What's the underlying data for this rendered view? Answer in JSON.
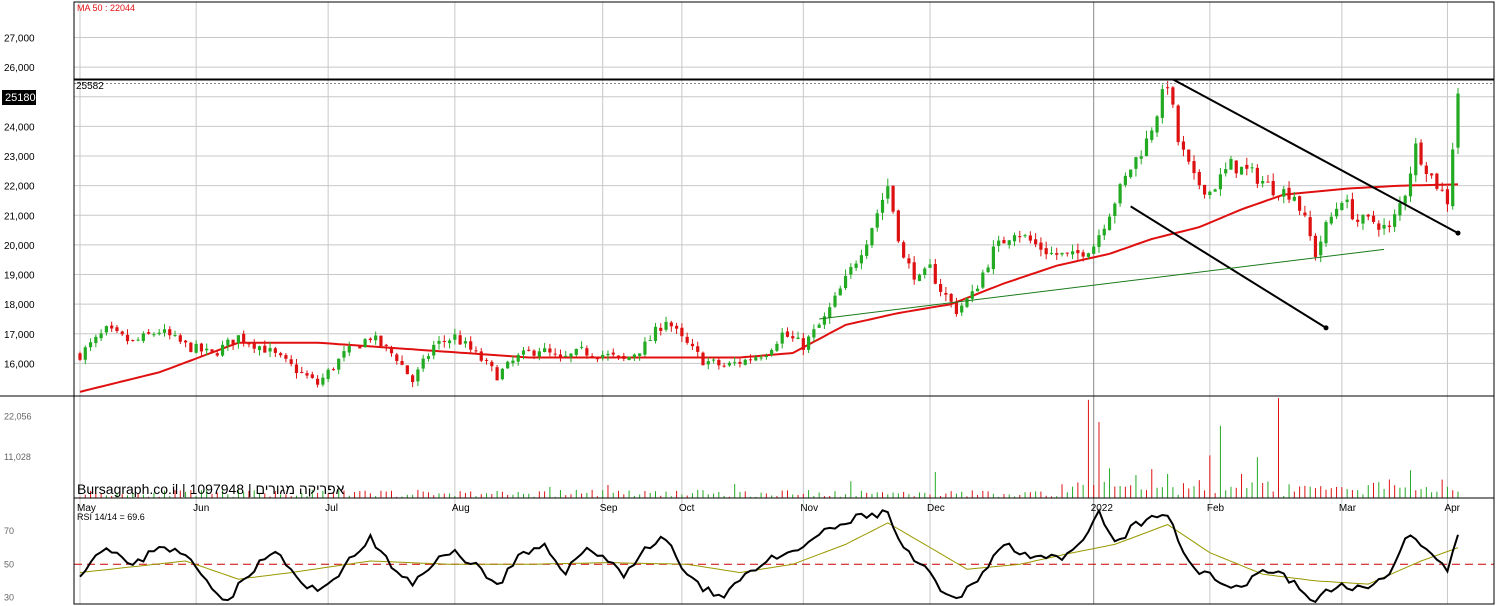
{
  "colors": {
    "up": "#22aa22",
    "down": "#dd1111",
    "ma": "#e01010",
    "trend_black": "#000000",
    "trend_green": "#1a7a1a",
    "rsi": "#000000",
    "rsi_signal": "#999900",
    "rsi_midline": "#cc0000",
    "grid": "#c8c8c8"
  },
  "header": {
    "ma_label": "MA 50 : 22044",
    "resistance_label": "25582",
    "last_price_badge": "25180",
    "watermark": "Bursagraph.co.il | 1097948 | אפריקה מגורים",
    "rsi_label": "RSI 14/14 = 69.6"
  },
  "chart_data": [
    {
      "type": "candlestick",
      "panel": "price",
      "y_ticks": [
        "27,000",
        "26,000",
        "25,000",
        "24,000",
        "23,000",
        "22,000",
        "21,000",
        "20,000",
        "19,000",
        "18,000",
        "17,000",
        "16,000"
      ],
      "ylim": [
        14900,
        28200
      ],
      "x_ticks": [
        "May",
        "Jun",
        "Jul",
        "Aug",
        "Sep",
        "Oct",
        "Nov",
        "Dec",
        "2022",
        "Feb",
        "Mar",
        "Apr"
      ],
      "x_tick_session": [
        0,
        22,
        47,
        71,
        99,
        114,
        137,
        161,
        192,
        214,
        239,
        259
      ],
      "session_count": 262,
      "ohlc_keyframes": [
        [
          0,
          16300
        ],
        [
          5,
          17100
        ],
        [
          10,
          16700
        ],
        [
          15,
          17100
        ],
        [
          20,
          16600
        ],
        [
          25,
          16300
        ],
        [
          30,
          16900
        ],
        [
          35,
          16500
        ],
        [
          40,
          15900
        ],
        [
          45,
          15300
        ],
        [
          50,
          16300
        ],
        [
          55,
          16900
        ],
        [
          60,
          16200
        ],
        [
          63,
          15400
        ],
        [
          67,
          16600
        ],
        [
          71,
          16900
        ],
        [
          75,
          16300
        ],
        [
          79,
          15600
        ],
        [
          83,
          16200
        ],
        [
          87,
          16500
        ],
        [
          91,
          16100
        ],
        [
          95,
          16400
        ],
        [
          99,
          16300
        ],
        [
          103,
          16100
        ],
        [
          107,
          16600
        ],
        [
          111,
          17500
        ],
        [
          114,
          16800
        ],
        [
          118,
          16100
        ],
        [
          122,
          15900
        ],
        [
          126,
          16100
        ],
        [
          130,
          16400
        ],
        [
          133,
          17000
        ],
        [
          137,
          16600
        ],
        [
          141,
          17500
        ],
        [
          145,
          18800
        ],
        [
          149,
          20200
        ],
        [
          153,
          22000
        ],
        [
          156,
          19500
        ],
        [
          159,
          18800
        ],
        [
          161,
          19200
        ],
        [
          163,
          18500
        ],
        [
          166,
          17800
        ],
        [
          169,
          18300
        ],
        [
          173,
          19800
        ],
        [
          177,
          20500
        ],
        [
          181,
          20000
        ],
        [
          184,
          19700
        ],
        [
          188,
          19600
        ],
        [
          192,
          20000
        ],
        [
          196,
          21500
        ],
        [
          199,
          22600
        ],
        [
          202,
          23500
        ],
        [
          205,
          25000
        ],
        [
          206,
          25500
        ],
        [
          208,
          23500
        ],
        [
          211,
          22200
        ],
        [
          214,
          21800
        ],
        [
          218,
          22700
        ],
        [
          222,
          22400
        ],
        [
          226,
          21900
        ],
        [
          230,
          21700
        ],
        [
          232,
          20800
        ],
        [
          234,
          19700
        ],
        [
          236,
          20600
        ],
        [
          239,
          21600
        ],
        [
          242,
          20800
        ],
        [
          245,
          20800
        ],
        [
          248,
          20500
        ],
        [
          251,
          21800
        ],
        [
          253,
          23300
        ],
        [
          256,
          22300
        ],
        [
          259,
          21500
        ],
        [
          261,
          25180
        ]
      ],
      "ma": {
        "period": 50,
        "last": 22044,
        "keyframes": [
          [
            0,
            15040
          ],
          [
            15,
            15700
          ],
          [
            30,
            16700
          ],
          [
            45,
            16700
          ],
          [
            65,
            16450
          ],
          [
            85,
            16200
          ],
          [
            105,
            16200
          ],
          [
            125,
            16200
          ],
          [
            135,
            16350
          ],
          [
            145,
            17300
          ],
          [
            155,
            17700
          ],
          [
            165,
            18000
          ],
          [
            175,
            18700
          ],
          [
            185,
            19300
          ],
          [
            195,
            19700
          ],
          [
            203,
            20200
          ],
          [
            212,
            20600
          ],
          [
            220,
            21200
          ],
          [
            228,
            21700
          ],
          [
            240,
            21900
          ],
          [
            250,
            22000
          ],
          [
            261,
            22044
          ]
        ]
      },
      "resistance": 25582,
      "trendlines": [
        {
          "name": "upper_channel",
          "from": [
            207,
            25590
          ],
          "to": [
            261,
            20400
          ]
        },
        {
          "name": "lower_channel",
          "from": [
            199,
            21300
          ],
          "to": [
            236,
            17200
          ]
        },
        {
          "name": "support",
          "from": [
            140,
            17500
          ],
          "to": [
            247,
            19850
          ]
        }
      ]
    },
    {
      "type": "bar",
      "panel": "volume",
      "y_ticks": [
        "22,056",
        "11,028"
      ],
      "ylim": [
        0,
        27000
      ],
      "spikes": [
        [
          191,
          26500
        ],
        [
          193,
          20500
        ],
        [
          206,
          6500
        ],
        [
          214,
          11500
        ],
        [
          216,
          19500
        ],
        [
          220,
          6500
        ],
        [
          223,
          11000
        ],
        [
          227,
          27000
        ],
        [
          235,
          4000
        ],
        [
          248,
          5000
        ],
        [
          252,
          7500
        ],
        [
          203,
          7800
        ],
        [
          195,
          8000
        ],
        [
          162,
          7000
        ],
        [
          146,
          4500
        ],
        [
          124,
          3800
        ],
        [
          100,
          3500
        ],
        [
          89,
          3000
        ],
        [
          235,
          3200
        ],
        [
          200,
          6200
        ]
      ]
    },
    {
      "type": "line",
      "panel": "rsi",
      "y_ticks": [
        "70",
        "50",
        "30"
      ],
      "ylim": [
        26,
        84
      ],
      "last": 69.6,
      "keyframes": [
        [
          0,
          45
        ],
        [
          5,
          62
        ],
        [
          10,
          48
        ],
        [
          15,
          62
        ],
        [
          20,
          55
        ],
        [
          25,
          37
        ],
        [
          28,
          28
        ],
        [
          32,
          45
        ],
        [
          37,
          58
        ],
        [
          42,
          38
        ],
        [
          45,
          33
        ],
        [
          50,
          48
        ],
        [
          55,
          66
        ],
        [
          60,
          44
        ],
        [
          63,
          38
        ],
        [
          67,
          52
        ],
        [
          71,
          57
        ],
        [
          75,
          50
        ],
        [
          79,
          37
        ],
        [
          83,
          54
        ],
        [
          88,
          60
        ],
        [
          92,
          46
        ],
        [
          96,
          60
        ],
        [
          99,
          55
        ],
        [
          103,
          44
        ],
        [
          107,
          59
        ],
        [
          111,
          66
        ],
        [
          114,
          48
        ],
        [
          118,
          34
        ],
        [
          122,
          32
        ],
        [
          126,
          44
        ],
        [
          130,
          52
        ],
        [
          135,
          56
        ],
        [
          139,
          66
        ],
        [
          143,
          72
        ],
        [
          148,
          79
        ],
        [
          153,
          81
        ],
        [
          156,
          58
        ],
        [
          160,
          48
        ],
        [
          163,
          33
        ],
        [
          166,
          28
        ],
        [
          170,
          42
        ],
        [
          175,
          62
        ],
        [
          180,
          56
        ],
        [
          186,
          52
        ],
        [
          190,
          63
        ],
        [
          193,
          81
        ],
        [
          196,
          62
        ],
        [
          200,
          74
        ],
        [
          204,
          78
        ],
        [
          206,
          80
        ],
        [
          209,
          57
        ],
        [
          212,
          46
        ],
        [
          216,
          39
        ],
        [
          220,
          37
        ],
        [
          224,
          47
        ],
        [
          228,
          44
        ],
        [
          232,
          32
        ],
        [
          234,
          28
        ],
        [
          238,
          37
        ],
        [
          242,
          36
        ],
        [
          245,
          36
        ],
        [
          248,
          44
        ],
        [
          251,
          68
        ],
        [
          254,
          62
        ],
        [
          257,
          52
        ],
        [
          259,
          47
        ],
        [
          261,
          70
        ]
      ],
      "signal_keyframes": [
        [
          0,
          45
        ],
        [
          20,
          52
        ],
        [
          30,
          41
        ],
        [
          40,
          45
        ],
        [
          55,
          52
        ],
        [
          70,
          50
        ],
        [
          85,
          50
        ],
        [
          100,
          51
        ],
        [
          115,
          50
        ],
        [
          125,
          45
        ],
        [
          135,
          50
        ],
        [
          145,
          62
        ],
        [
          153,
          75
        ],
        [
          160,
          62
        ],
        [
          168,
          47
        ],
        [
          178,
          50
        ],
        [
          188,
          57
        ],
        [
          196,
          62
        ],
        [
          206,
          74
        ],
        [
          214,
          57
        ],
        [
          224,
          44
        ],
        [
          234,
          40
        ],
        [
          244,
          38
        ],
        [
          254,
          52
        ],
        [
          261,
          60
        ]
      ],
      "midline": 50
    }
  ],
  "x_axis": {
    "labels": [
      "May",
      "Jun",
      "Jul",
      "Aug",
      "Sep",
      "Oct",
      "Nov",
      "Dec",
      "2022",
      "Feb",
      "Mar",
      "Apr"
    ]
  }
}
